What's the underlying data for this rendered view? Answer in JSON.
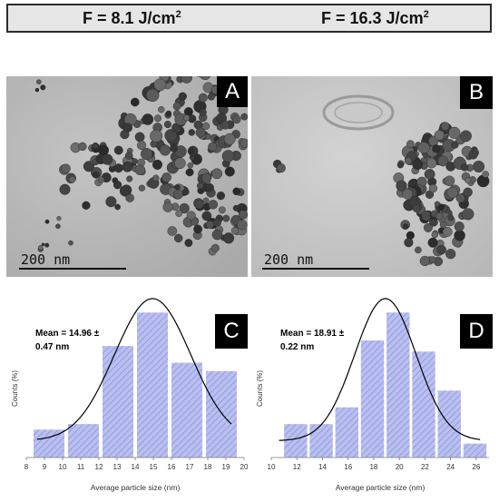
{
  "header": {
    "left_fluence_prefix": "F = 8.1 J/cm",
    "left_fluence_sup": "2",
    "right_fluence_prefix": "F = 16.3  J/cm",
    "right_fluence_sup": "2"
  },
  "tem_panels": [
    {
      "letter": "A",
      "scale_text": "200 nm"
    },
    {
      "letter": "B",
      "scale_text": "200 nm"
    }
  ],
  "chart_data": [
    {
      "type": "bar",
      "panel_letter": "C",
      "xlabel": "Average particle size (nm)",
      "ylabel": "Counts (%)",
      "annotation_line1": "Mean = 14.96 ±",
      "annotation_line2": "0.47 nm",
      "xlim": [
        8,
        20
      ],
      "x_ticks": [
        8,
        9,
        10,
        11,
        12,
        13,
        14,
        15,
        16,
        17,
        18,
        19,
        20
      ],
      "bins": [
        {
          "x0": 8.4,
          "x1": 10.1,
          "value": 5
        },
        {
          "x0": 10.3,
          "x1": 12.0,
          "value": 6
        },
        {
          "x0": 12.2,
          "x1": 13.9,
          "value": 20
        },
        {
          "x0": 14.1,
          "x1": 15.8,
          "value": 26
        },
        {
          "x0": 16.0,
          "x1": 17.7,
          "value": 17
        },
        {
          "x0": 17.9,
          "x1": 19.6,
          "value": 15.5
        }
      ],
      "ylim": [
        0,
        28
      ],
      "fit": {
        "type": "gaussian",
        "mean": 14.96,
        "sigma": 2.1,
        "peak": 25.5
      }
    },
    {
      "type": "bar",
      "panel_letter": "D",
      "xlabel": "Average particle size (nm)",
      "ylabel": "Counts (%)",
      "annotation_line1": "Mean = 18.91 ±",
      "annotation_line2": "0.22 nm",
      "xlim": [
        10,
        27
      ],
      "x_ticks": [
        10,
        12,
        14,
        16,
        18,
        20,
        22,
        24,
        26
      ],
      "bins": [
        {
          "x0": 11.0,
          "x1": 12.8,
          "value": 6
        },
        {
          "x0": 13.0,
          "x1": 14.8,
          "value": 6
        },
        {
          "x0": 15.0,
          "x1": 16.8,
          "value": 9
        },
        {
          "x0": 17.0,
          "x1": 18.8,
          "value": 21
        },
        {
          "x0": 19.0,
          "x1": 20.8,
          "value": 26
        },
        {
          "x0": 21.0,
          "x1": 22.8,
          "value": 19
        },
        {
          "x0": 23.0,
          "x1": 24.8,
          "value": 12
        },
        {
          "x0": 25.0,
          "x1": 26.8,
          "value": 2.5
        }
      ],
      "ylim": [
        0,
        28
      ],
      "fit": {
        "type": "gaussian",
        "mean": 18.91,
        "sigma": 2.4,
        "peak": 25.5
      }
    }
  ],
  "colors": {
    "bar_fill": "#b9bff0",
    "bar_hatch": "#8c94d6",
    "fit_line": "#000000",
    "tem_background": "#b4b4b4",
    "particle_dark": "#3a3a3a"
  }
}
